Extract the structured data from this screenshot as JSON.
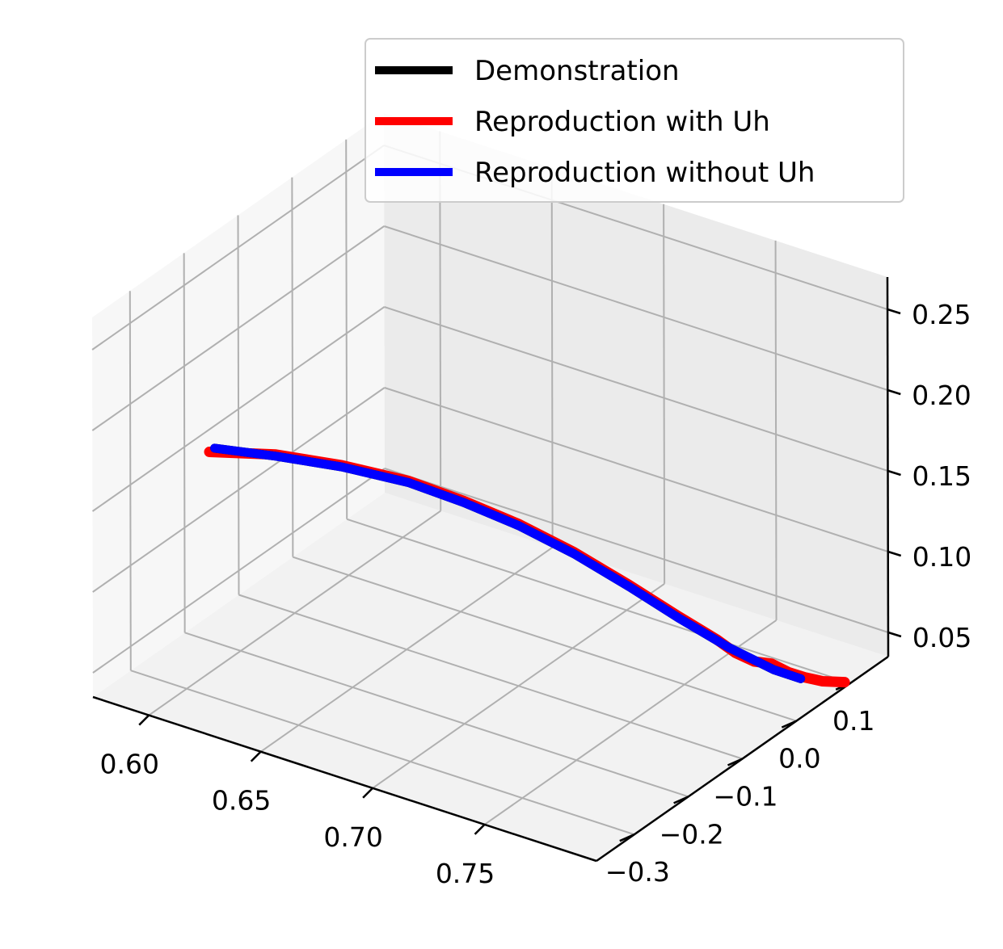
{
  "chart_data": {
    "type": "line",
    "projection": "3d",
    "title": "",
    "xlabel": "",
    "ylabel": "",
    "zlabel": "",
    "grid": true,
    "legend_position": "top-right",
    "axes": {
      "x": {
        "ticks": [
          0.6,
          0.65,
          0.7,
          0.75
        ],
        "tick_labels": [
          "0.60",
          "0.65",
          "0.70",
          "0.75"
        ],
        "lim": [
          0.575,
          0.8
        ]
      },
      "y": {
        "ticks": [
          -0.3,
          -0.2,
          -0.1,
          0.0,
          0.1
        ],
        "tick_labels": [
          "−0.3",
          "−0.2",
          "−0.1",
          "0.0",
          "0.1"
        ],
        "lim": [
          -0.37,
          0.17
        ]
      },
      "z": {
        "ticks": [
          0.05,
          0.1,
          0.15,
          0.2,
          0.25
        ],
        "tick_labels": [
          "0.05",
          "0.10",
          "0.15",
          "0.20",
          "0.25"
        ],
        "lim": [
          0.035,
          0.27
        ]
      }
    },
    "series": [
      {
        "name": "Demonstration",
        "color": "#000000",
        "points": [
          [
            0.62,
            -0.33,
            0.2
          ],
          [
            0.64,
            -0.3,
            0.197
          ],
          [
            0.66,
            -0.26,
            0.19
          ],
          [
            0.68,
            -0.22,
            0.18
          ],
          [
            0.695,
            -0.18,
            0.165
          ],
          [
            0.71,
            -0.14,
            0.148
          ],
          [
            0.725,
            -0.1,
            0.128
          ],
          [
            0.74,
            -0.06,
            0.105
          ],
          [
            0.752,
            -0.02,
            0.082
          ],
          [
            0.765,
            0.02,
            0.06
          ],
          [
            0.778,
            0.05,
            0.045
          ],
          [
            0.785,
            0.07,
            0.038
          ]
        ]
      },
      {
        "name": "Reproduction with Uh",
        "color": "#ff0000",
        "points": [
          [
            0.62,
            -0.34,
            0.2
          ],
          [
            0.64,
            -0.3,
            0.198
          ],
          [
            0.66,
            -0.26,
            0.191
          ],
          [
            0.68,
            -0.22,
            0.181
          ],
          [
            0.695,
            -0.18,
            0.166
          ],
          [
            0.71,
            -0.14,
            0.149
          ],
          [
            0.725,
            -0.1,
            0.129
          ],
          [
            0.74,
            -0.06,
            0.106
          ],
          [
            0.752,
            -0.02,
            0.083
          ],
          [
            0.762,
            0.01,
            0.066
          ],
          [
            0.768,
            0.02,
            0.058
          ],
          [
            0.774,
            0.03,
            0.053
          ],
          [
            0.778,
            0.045,
            0.05
          ],
          [
            0.782,
            0.06,
            0.043
          ],
          [
            0.786,
            0.075,
            0.038
          ],
          [
            0.79,
            0.09,
            0.034
          ],
          [
            0.795,
            0.11,
            0.031
          ]
        ]
      },
      {
        "name": "Reproduction without Uh",
        "color": "#0000ff",
        "points": [
          [
            0.62,
            -0.33,
            0.2
          ],
          [
            0.64,
            -0.3,
            0.197
          ],
          [
            0.66,
            -0.26,
            0.19
          ],
          [
            0.68,
            -0.22,
            0.18
          ],
          [
            0.695,
            -0.18,
            0.165
          ],
          [
            0.71,
            -0.14,
            0.148
          ],
          [
            0.725,
            -0.1,
            0.128
          ],
          [
            0.74,
            -0.06,
            0.105
          ],
          [
            0.752,
            -0.02,
            0.082
          ],
          [
            0.765,
            0.02,
            0.06
          ],
          [
            0.778,
            0.05,
            0.045
          ],
          [
            0.785,
            0.07,
            0.038
          ]
        ]
      }
    ]
  }
}
